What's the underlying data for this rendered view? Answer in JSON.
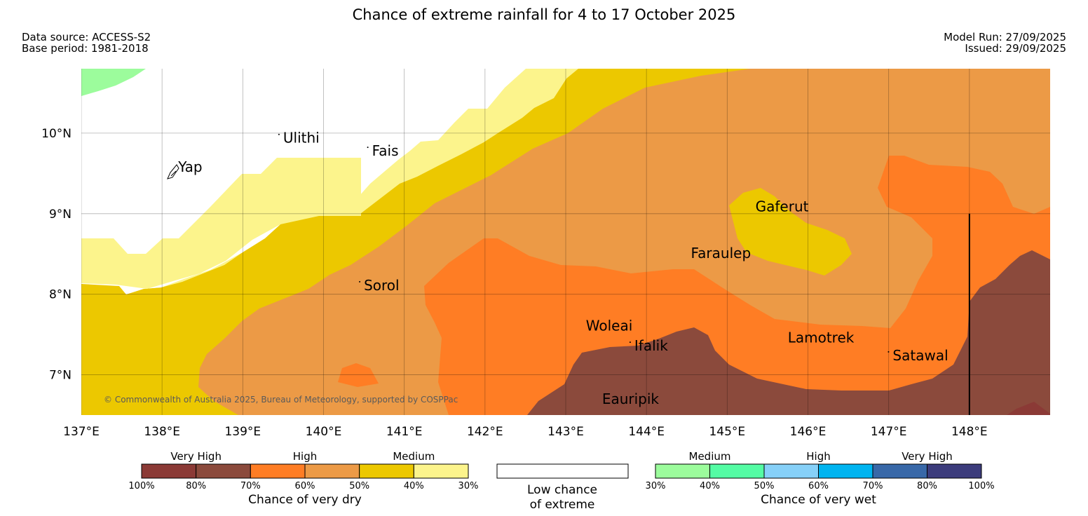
{
  "title": "Chance of extreme rainfall for 4 to 17 October 2025",
  "data_source": "Data source: ACCESS-S2",
  "base_period": "Base period: 1981-2018",
  "model_run": "Model Run: 27/09/2025",
  "issued": "Issued: 29/09/2025",
  "copyright": "© Commonwealth of Australia 2025, Bureau of Meteorology, supported by COSPPac",
  "map": {
    "lon_range": [
      137,
      149
    ],
    "lat_range": [
      6.5,
      10.8
    ],
    "lon_ticks": [
      "137°E",
      "138°E",
      "139°E",
      "140°E",
      "141°E",
      "142°E",
      "143°E",
      "144°E",
      "145°E",
      "146°E",
      "147°E",
      "148°E"
    ],
    "lat_ticks": [
      "10°N",
      "9°N",
      "8°N",
      "7°N"
    ],
    "places": [
      {
        "name": "Yap",
        "lon": 138.2,
        "lat": 9.52
      },
      {
        "name": "Ulithi",
        "lon": 139.5,
        "lat": 9.88
      },
      {
        "name": "Fais",
        "lon": 140.6,
        "lat": 9.72
      },
      {
        "name": "Gaferut",
        "lon": 145.35,
        "lat": 9.03
      },
      {
        "name": "Faraulep",
        "lon": 144.55,
        "lat": 8.45
      },
      {
        "name": "Sorol",
        "lon": 140.5,
        "lat": 8.05
      },
      {
        "name": "Woleai",
        "lon": 143.25,
        "lat": 7.55
      },
      {
        "name": "Ifalik",
        "lon": 143.85,
        "lat": 7.3
      },
      {
        "name": "Lamotrek",
        "lon": 145.75,
        "lat": 7.4
      },
      {
        "name": "Satawal",
        "lon": 147.05,
        "lat": 7.18
      },
      {
        "name": "Eauripik",
        "lon": 143.45,
        "lat": 6.64
      }
    ],
    "boundary_line": {
      "lon": 148.0,
      "lat_from": 9.0,
      "lat_to": 6.5
    }
  },
  "legend": {
    "dry": {
      "headers": [
        "Very High",
        "High",
        "Medium"
      ],
      "colors": [
        "#8b3a36",
        "#8b4a3c",
        "#ff7d24",
        "#ec9a46",
        "#ecc800",
        "#fcf48c"
      ],
      "ticks": [
        "100%",
        "80%",
        "70%",
        "60%",
        "50%",
        "40%",
        "30%"
      ],
      "caption": "Chance of very dry"
    },
    "low": {
      "caption_line1": "Low chance",
      "caption_line2": "of extreme"
    },
    "wet": {
      "headers": [
        "Medium",
        "High",
        "Very High"
      ],
      "colors": [
        "#9cfc9c",
        "#54fca4",
        "#86d0f8",
        "#00b4f0",
        "#3868a8",
        "#3c3c7c"
      ],
      "ticks": [
        "30%",
        "40%",
        "50%",
        "60%",
        "70%",
        "80%",
        "100%"
      ],
      "caption": "Chance of very wet"
    }
  },
  "region_colors": {
    "low": "#ffffff",
    "very_high_dry": "#8b4a3c",
    "high_dry_70": "#ff7d24",
    "high_dry_60": "#ec9a46",
    "medium_dry_50": "#ecc800",
    "medium_dry_40": "#fcf48c",
    "medium_wet": "#9cfc9c"
  }
}
